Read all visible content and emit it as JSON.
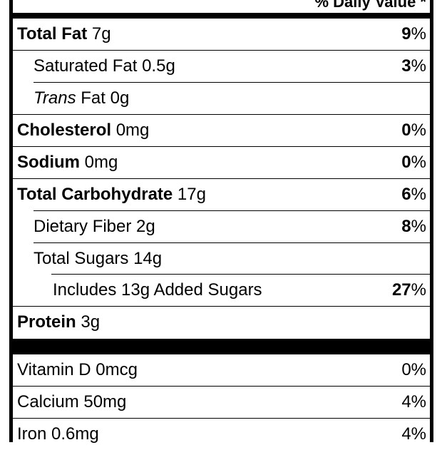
{
  "header": {
    "text": "% Daily Value *"
  },
  "nutrients": [
    {
      "bold": "Total Fat",
      "amount": " 7g",
      "dv": "9",
      "pct": "%"
    },
    {
      "label": "Saturated Fat 0.5g",
      "dv": "3",
      "pct": "%"
    },
    {
      "italic": "Trans",
      "label": " Fat 0g",
      "dv": "",
      "pct": ""
    },
    {
      "bold": "Cholesterol",
      "amount": " 0mg",
      "dv": "0",
      "pct": "%"
    },
    {
      "bold": "Sodium",
      "amount": " 0mg",
      "dv": "0",
      "pct": "%"
    },
    {
      "bold": "Total Carbohydrate",
      "amount": " 17g",
      "dv": "6",
      "pct": "%"
    },
    {
      "label": "Dietary Fiber 2g",
      "dv": "8",
      "pct": "%"
    },
    {
      "label": "Total Sugars 14g",
      "dv": "",
      "pct": ""
    },
    {
      "label": "Includes 13g Added Sugars",
      "dv": "27",
      "pct": "%"
    },
    {
      "bold": "Protein",
      "amount": " 3g",
      "dv": "",
      "pct": ""
    }
  ],
  "vitamins": [
    {
      "label": "Vitamin D 0mcg",
      "dv": "0%"
    },
    {
      "label": "Calcium 50mg",
      "dv": "4%"
    },
    {
      "label": "Iron 0.6mg",
      "dv": "4%"
    }
  ]
}
